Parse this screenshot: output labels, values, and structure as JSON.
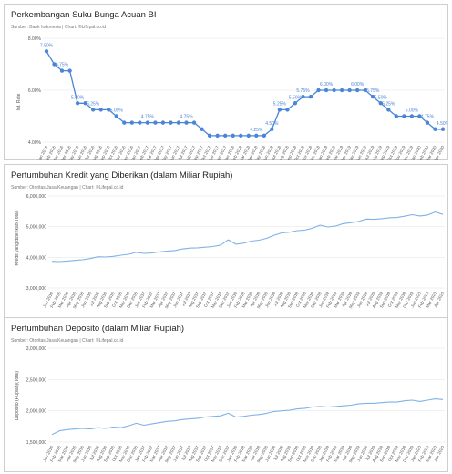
{
  "charts": [
    {
      "title": "Perkembangan Suku Bunga Acuan BI",
      "subtitle": "Sumber: Bank Indonesia | Chart: ©Lifepal.co.id",
      "ylabel": "Int. Rate"
    },
    {
      "title": "Pertumbuhan Kredit yang Diberikan (dalam Miliar Rupiah)",
      "subtitle": "Sumber: Otoritas Jasa Keuangan | Chart: ©Lifepal.co.id",
      "ylabel": "Kredit yang diberikan(Total)"
    },
    {
      "title": "Pertumbuhan Deposito (dalam Miliar Rupiah)",
      "subtitle": "Sumber: Otoritas Jasa Keuangan | Chart: ©Lifepal.co.id",
      "ylabel": "Deposito (Rupiah)(Total)"
    }
  ],
  "chart_data": [
    {
      "type": "line",
      "title": "Perkembangan Suku Bunga Acuan BI",
      "ylabel": "Int. Rate",
      "color": "#4a86d8",
      "ylim": [
        4.0,
        8.0
      ],
      "yticks": [
        4.0,
        6.0,
        8.0
      ],
      "ytick_labels": [
        "4.00%",
        "6.00%",
        "8.00%"
      ],
      "x": [
        "Jan 2016",
        "Feb 2016",
        "Mar 2016",
        "Apr 2016",
        "May 2016",
        "Jun 2016",
        "Jul 2016",
        "Aug 2016",
        "Sep 2016",
        "Oct 2016",
        "Nov 2016",
        "Dec 2016",
        "Jan 2017",
        "Feb 2017",
        "Mar 2017",
        "Apr 2017",
        "May 2017",
        "Jun 2017",
        "Jul 2017",
        "Aug 2017",
        "Sep 2017",
        "Oct 2017",
        "Nov 2017",
        "Dec 2017",
        "Jan 2018",
        "Feb 2018",
        "Mar 2018",
        "Apr 2018",
        "May 2018",
        "Jun 2018",
        "Jul 2018",
        "Aug 2018",
        "Sep 2018",
        "Oct 2018",
        "Nov 2018",
        "Dec 2018",
        "Jan 2019",
        "Feb 2019",
        "Mar 2019",
        "Apr 2019",
        "May 2019",
        "Jun 2019",
        "Jul 2019",
        "Aug 2019",
        "Sep 2019",
        "Oct 2019",
        "Nov 2019",
        "Dec 2019",
        "Jan 2020",
        "Feb 2020",
        "Mar 2020",
        "Apr 2020"
      ],
      "values": [
        7.5,
        7.0,
        6.75,
        6.75,
        5.5,
        5.5,
        5.25,
        5.25,
        5.25,
        5.0,
        4.75,
        4.75,
        4.75,
        4.75,
        4.75,
        4.75,
        4.75,
        4.75,
        4.75,
        4.75,
        4.5,
        4.25,
        4.25,
        4.25,
        4.25,
        4.25,
        4.25,
        4.25,
        4.25,
        4.5,
        5.25,
        5.25,
        5.5,
        5.75,
        5.75,
        6.0,
        6.0,
        6.0,
        6.0,
        6.0,
        6.0,
        6.0,
        5.75,
        5.5,
        5.25,
        5.0,
        5.0,
        5.0,
        5.0,
        4.75,
        4.5,
        4.5
      ],
      "data_labels": [
        {
          "index": 0,
          "text": "7.50%"
        },
        {
          "index": 2,
          "text": "6.75%"
        },
        {
          "index": 4,
          "text": "5.50%"
        },
        {
          "index": 6,
          "text": "5.25%"
        },
        {
          "index": 9,
          "text": "5.00%"
        },
        {
          "index": 13,
          "text": "4.75%"
        },
        {
          "index": 18,
          "text": "4.75%"
        },
        {
          "index": 27,
          "text": "4.25%"
        },
        {
          "index": 29,
          "text": "4.50%"
        },
        {
          "index": 30,
          "text": "5.25%"
        },
        {
          "index": 32,
          "text": "5.50%"
        },
        {
          "index": 33,
          "text": "5.75%"
        },
        {
          "index": 36,
          "text": "6.00%"
        },
        {
          "index": 40,
          "text": "6.00%"
        },
        {
          "index": 42,
          "text": "5.75%"
        },
        {
          "index": 43,
          "text": "5.50%"
        },
        {
          "index": 44,
          "text": "5.25%"
        },
        {
          "index": 47,
          "text": "5.00%"
        },
        {
          "index": 49,
          "text": "4.75%"
        },
        {
          "index": 51,
          "text": "4.50%"
        }
      ]
    },
    {
      "type": "line",
      "title": "Pertumbuhan Kredit yang Diberikan (dalam Miliar Rupiah)",
      "ylabel": "Kredit yang diberikan(Total)",
      "color": "#7fb2e8",
      "ylim": [
        3000000,
        6000000
      ],
      "yticks": [
        3000000,
        4000000,
        5000000,
        6000000
      ],
      "ytick_labels": [
        "3,000,000",
        "4,000,000",
        "5,000,000",
        "6,000,000"
      ],
      "x": [
        "Jan 2016",
        "Feb 2016",
        "Mar 2016",
        "Apr 2016",
        "May 2016",
        "Jun 2016",
        "Jul 2016",
        "Aug 2016",
        "Sep 2016",
        "Oct 2016",
        "Nov 2016",
        "Dec 2016",
        "Jan 2017",
        "Feb 2017",
        "Mar 2017",
        "Apr 2017",
        "May 2017",
        "Jun 2017",
        "Jul 2017",
        "Aug 2017",
        "Sep 2017",
        "Oct 2017",
        "Nov 2017",
        "Dec 2017",
        "Jan 2018",
        "Feb 2018",
        "Mar 2018",
        "Apr 2018",
        "May 2018",
        "Jun 2018",
        "Jul 2018",
        "Aug 2018",
        "Sep 2018",
        "Oct 2018",
        "Nov 2018",
        "Dec 2018",
        "Jan 2019",
        "Feb 2019",
        "Mar 2019",
        "Apr 2019",
        "May 2019",
        "Jun 2019",
        "Jul 2019",
        "Aug 2019",
        "Sep 2019",
        "Oct 2019",
        "Nov 2019",
        "Dec 2019",
        "Jan 2020",
        "Feb 2020",
        "Mar 2020",
        "Apr 2020"
      ],
      "values": [
        3870000,
        3860000,
        3880000,
        3900000,
        3920000,
        3960000,
        4020000,
        4010000,
        4030000,
        4070000,
        4100000,
        4160000,
        4130000,
        4140000,
        4180000,
        4200000,
        4220000,
        4270000,
        4300000,
        4310000,
        4330000,
        4350000,
        4400000,
        4570000,
        4430000,
        4460000,
        4530000,
        4560000,
        4620000,
        4720000,
        4800000,
        4820000,
        4870000,
        4890000,
        4950000,
        5050000,
        4990000,
        5020000,
        5100000,
        5130000,
        5170000,
        5250000,
        5240000,
        5260000,
        5290000,
        5300000,
        5340000,
        5390000,
        5350000,
        5380000,
        5480000,
        5400000
      ]
    },
    {
      "type": "line",
      "title": "Pertumbuhan Deposito (dalam Miliar Rupiah)",
      "ylabel": "Deposito (Rupiah)(Total)",
      "color": "#7fb2e8",
      "ylim": [
        1500000,
        3000000
      ],
      "yticks": [
        1500000,
        2000000,
        2500000,
        3000000
      ],
      "ytick_labels": [
        "1,500,000",
        "2,000,000",
        "2,500,000",
        "3,000,000"
      ],
      "x": [
        "Jan 2016",
        "Feb 2016",
        "Mar 2016",
        "Apr 2016",
        "May 2016",
        "Jun 2016",
        "Jul 2016",
        "Aug 2016",
        "Sep 2016",
        "Oct 2016",
        "Nov 2016",
        "Dec 2016",
        "Jan 2017",
        "Feb 2017",
        "Mar 2017",
        "Apr 2017",
        "May 2017",
        "Jun 2017",
        "Jul 2017",
        "Aug 2017",
        "Sep 2017",
        "Oct 2017",
        "Nov 2017",
        "Dec 2017",
        "Jan 2018",
        "Feb 2018",
        "Mar 2018",
        "Apr 2018",
        "May 2018",
        "Jun 2018",
        "Jul 2018",
        "Aug 2018",
        "Sep 2018",
        "Oct 2018",
        "Nov 2018",
        "Dec 2018",
        "Jan 2019",
        "Feb 2019",
        "Mar 2019",
        "Apr 2019",
        "May 2019",
        "Jun 2019",
        "Jul 2019",
        "Aug 2019",
        "Sep 2019",
        "Oct 2019",
        "Nov 2019",
        "Dec 2019",
        "Jan 2020",
        "Feb 2020",
        "Mar 2020",
        "Apr 2020"
      ],
      "values": [
        1620000,
        1680000,
        1700000,
        1710000,
        1720000,
        1710000,
        1730000,
        1720000,
        1740000,
        1730000,
        1760000,
        1800000,
        1770000,
        1790000,
        1810000,
        1830000,
        1840000,
        1860000,
        1870000,
        1880000,
        1900000,
        1910000,
        1920000,
        1960000,
        1900000,
        1910000,
        1930000,
        1940000,
        1960000,
        1990000,
        2000000,
        2010000,
        2030000,
        2040000,
        2060000,
        2070000,
        2060000,
        2070000,
        2080000,
        2090000,
        2110000,
        2120000,
        2120000,
        2130000,
        2140000,
        2140000,
        2160000,
        2170000,
        2150000,
        2170000,
        2190000,
        2180000
      ]
    }
  ]
}
